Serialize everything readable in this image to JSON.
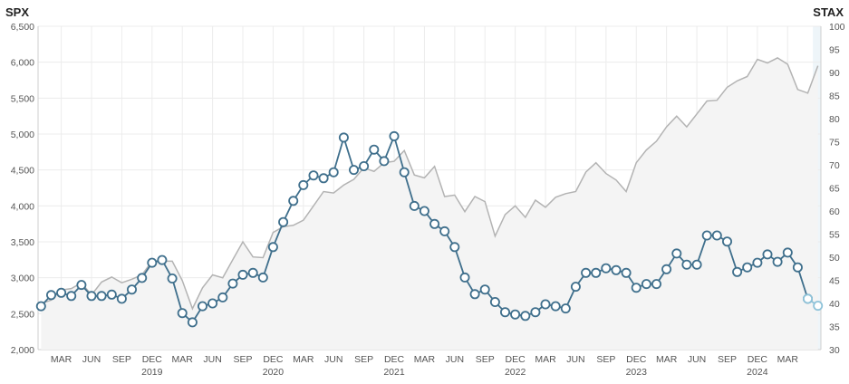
{
  "chart_data": {
    "type": "line",
    "left_axis_title": "SPX",
    "right_axis_title": "STAX",
    "left_ylim": [
      2000,
      6500
    ],
    "left_ticks": [
      "2,000",
      "2,500",
      "3,000",
      "3,500",
      "4,000",
      "4,500",
      "5,000",
      "5,500",
      "6,000",
      "6,500"
    ],
    "left_tick_values": [
      2000,
      2500,
      3000,
      3500,
      4000,
      4500,
      5000,
      5500,
      6000,
      6500
    ],
    "right_ylim": [
      30,
      100
    ],
    "right_ticks": [
      "30",
      "35",
      "40",
      "45",
      "50",
      "55",
      "60",
      "65",
      "70",
      "75",
      "80",
      "85",
      "90",
      "95",
      "100"
    ],
    "right_tick_values": [
      30,
      35,
      40,
      45,
      50,
      55,
      60,
      65,
      70,
      75,
      80,
      85,
      90,
      95,
      100
    ],
    "x_month_ticks": [
      {
        "label": "MAR",
        "x": 2.0
      },
      {
        "label": "JUN",
        "x": 5.0
      },
      {
        "label": "SEP",
        "x": 8.0
      },
      {
        "label": "DEC",
        "x": 11.0
      },
      {
        "label": "MAR",
        "x": 14.0
      },
      {
        "label": "JUN",
        "x": 17.0
      },
      {
        "label": "SEP",
        "x": 20.0
      },
      {
        "label": "DEC",
        "x": 23.0
      },
      {
        "label": "MAR",
        "x": 26.0
      },
      {
        "label": "JUN",
        "x": 29.0
      },
      {
        "label": "SEP",
        "x": 32.0
      },
      {
        "label": "DEC",
        "x": 35.0
      },
      {
        "label": "MAR",
        "x": 38.0
      },
      {
        "label": "JUN",
        "x": 41.0
      },
      {
        "label": "SEP",
        "x": 44.0
      },
      {
        "label": "DEC",
        "x": 47.0
      },
      {
        "label": "MAR",
        "x": 50.0
      },
      {
        "label": "JUN",
        "x": 53.0
      },
      {
        "label": "SEP",
        "x": 56.0
      },
      {
        "label": "DEC",
        "x": 59.0
      },
      {
        "label": "MAR",
        "x": 62.0
      },
      {
        "label": "JUN",
        "x": 65.0
      },
      {
        "label": "SEP",
        "x": 68.0
      },
      {
        "label": "DEC",
        "x": 71.0
      },
      {
        "label": "MAR",
        "x": 74.0
      }
    ],
    "x_year_labels": [
      {
        "label": "2019",
        "x": 11.0
      },
      {
        "label": "2020",
        "x": 23.0
      },
      {
        "label": "2021",
        "x": 35.0
      },
      {
        "label": "2022",
        "x": 47.0
      },
      {
        "label": "2023",
        "x": 59.0
      },
      {
        "label": "2024",
        "x": 71.0
      }
    ],
    "x_range": [
      -0.3,
      77.3
    ],
    "grid": true,
    "series": [
      {
        "axis": "left",
        "color": "#b3b3b3",
        "fill": "#f4f4f4",
        "values": [
          2640,
          2690,
          2830,
          2850,
          2930,
          2760,
          2940,
          3010,
          2930,
          2980,
          3040,
          3230,
          3230,
          3230,
          2960,
          2570,
          2860,
          3040,
          3000,
          3250,
          3500,
          3290,
          3280,
          3630,
          3710,
          3730,
          3800,
          4000,
          4200,
          4180,
          4290,
          4370,
          4530,
          4480,
          4600,
          4620,
          4770,
          4430,
          4390,
          4550,
          4130,
          4150,
          3920,
          4130,
          4060,
          3580,
          3880,
          4000,
          3840,
          4080,
          3980,
          4120,
          4170,
          4200,
          4470,
          4600,
          4450,
          4360,
          4200,
          4600,
          4780,
          4900,
          5100,
          5250,
          5100,
          5280,
          5460,
          5470,
          5650,
          5740,
          5800,
          6040,
          5990,
          6060,
          5970,
          5620,
          5570,
          5950
        ]
      },
      {
        "axis": "right",
        "color": "#3f6f8c",
        "marker": "circle",
        "values": [
          39.4,
          41.8,
          42.3,
          41.6,
          44.0,
          41.6,
          41.6,
          41.9,
          41.0,
          43.0,
          45.5,
          48.8,
          49.4,
          45.4,
          37.9,
          35.9,
          39.4,
          40.0,
          41.3,
          44.3,
          46.2,
          46.6,
          45.6,
          52.2,
          57.6,
          62.2,
          65.6,
          67.7,
          67.1,
          68.4,
          75.9,
          68.9,
          69.7,
          73.3,
          70.8,
          76.2,
          68.4,
          61.1,
          60.0,
          57.2,
          55.6,
          52.2,
          45.6,
          42.0,
          43.0,
          40.3,
          38.1,
          37.6,
          37.3,
          38.1,
          39.8,
          39.4,
          38.9,
          43.6,
          46.6,
          46.6,
          47.6,
          47.2,
          46.6,
          43.4,
          44.2,
          44.2,
          47.4,
          50.8,
          48.4,
          48.4,
          54.7,
          54.7,
          53.4,
          46.8,
          47.8,
          48.8,
          50.6,
          49.0,
          51.0,
          47.8,
          41.0
        ]
      },
      {
        "axis": "right",
        "color": "#8fc3d9",
        "marker": "circle",
        "values": [
          null,
          null,
          null,
          null,
          null,
          null,
          null,
          null,
          null,
          null,
          null,
          null,
          null,
          null,
          null,
          null,
          null,
          null,
          null,
          null,
          null,
          null,
          null,
          null,
          null,
          null,
          null,
          null,
          null,
          null,
          null,
          null,
          null,
          null,
          null,
          null,
          null,
          null,
          null,
          null,
          null,
          null,
          null,
          null,
          null,
          null,
          null,
          null,
          null,
          null,
          null,
          null,
          null,
          null,
          null,
          null,
          null,
          null,
          null,
          null,
          null,
          null,
          null,
          null,
          null,
          null,
          null,
          null,
          null,
          null,
          null,
          null,
          null,
          null,
          null,
          null,
          41.0,
          39.5
        ]
      }
    ]
  }
}
